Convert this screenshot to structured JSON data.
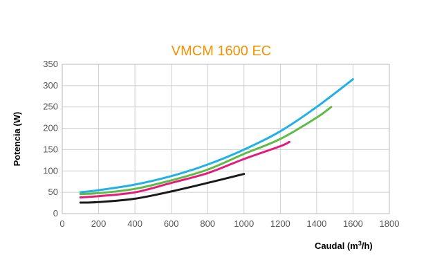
{
  "chart_data": {
    "type": "line",
    "title": "VMCM 1600 EC",
    "xlabel": "Caudal (m",
    "xlabel_sup": "3",
    "xlabel_tail": "/h)",
    "ylabel": "Potencia (W)",
    "xlim": [
      0,
      1800
    ],
    "ylim": [
      0,
      350
    ],
    "x_ticks": [
      0,
      200,
      400,
      600,
      800,
      1000,
      1200,
      1400,
      1600,
      1800
    ],
    "y_ticks": [
      0,
      50,
      100,
      150,
      200,
      250,
      300,
      350
    ],
    "grid": true,
    "series": [
      {
        "color": "#1fb0e8",
        "x": [
          100,
          200,
          400,
          600,
          800,
          1000,
          1200,
          1400,
          1600
        ],
        "y": [
          50,
          55,
          68,
          88,
          115,
          150,
          193,
          250,
          315
        ]
      },
      {
        "color": "#5fba46",
        "x": [
          100,
          200,
          400,
          600,
          800,
          1000,
          1200,
          1400,
          1480
        ],
        "y": [
          46,
          48,
          58,
          78,
          103,
          140,
          175,
          225,
          250
        ]
      },
      {
        "color": "#e6197d",
        "x": [
          100,
          200,
          400,
          600,
          800,
          1000,
          1200,
          1250
        ],
        "y": [
          38,
          41,
          50,
          72,
          95,
          128,
          158,
          168
        ]
      },
      {
        "color": "#1a1a1a",
        "x": [
          100,
          200,
          400,
          600,
          800,
          1000
        ],
        "y": [
          26,
          27,
          35,
          52,
          72,
          93
        ]
      }
    ]
  }
}
